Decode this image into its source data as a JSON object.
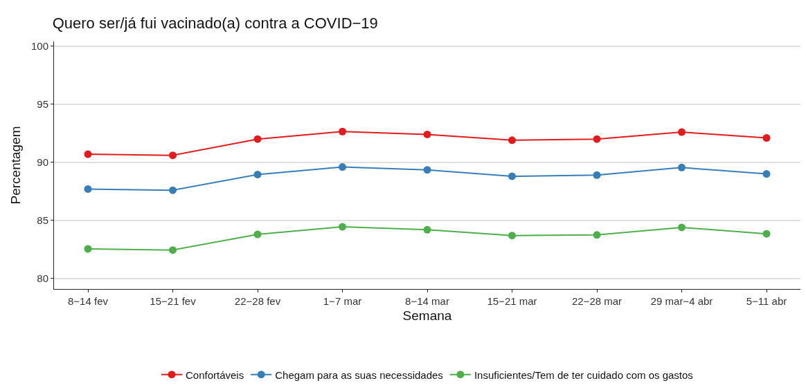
{
  "chart_data": {
    "type": "line",
    "title": "Quero ser/já fui vacinado(a) contra a COVID−19",
    "xlabel": "Semana",
    "ylabel": "Percentagem",
    "categories": [
      "8−14 fev",
      "15−21 fev",
      "22−28 fev",
      "1−7 mar",
      "8−14 mar",
      "15−21 mar",
      "22−28 mar",
      "29 mar−4 abr",
      "5−11 abr"
    ],
    "series": [
      {
        "name": "Confortáveis",
        "color": "#e41a1c",
        "values": [
          90.7,
          90.6,
          92.0,
          92.65,
          92.4,
          91.9,
          92.0,
          92.6,
          92.1
        ]
      },
      {
        "name": "Chegam para as suas necessidades",
        "color": "#377eb8",
        "values": [
          87.7,
          87.6,
          88.95,
          89.6,
          89.35,
          88.8,
          88.9,
          89.55,
          89.0
        ]
      },
      {
        "name": "Insuficientes/Tem de ter cuidado com os gastos",
        "color": "#4daf4a",
        "values": [
          82.55,
          82.45,
          83.8,
          84.45,
          84.2,
          83.7,
          83.75,
          84.4,
          83.85
        ]
      }
    ],
    "ylim": [
      79.1,
      100.4
    ],
    "yticks": [
      80,
      85,
      90,
      95,
      100
    ],
    "grid": "y",
    "legend": "bottom",
    "marker": "circle",
    "line_style": "solid"
  }
}
